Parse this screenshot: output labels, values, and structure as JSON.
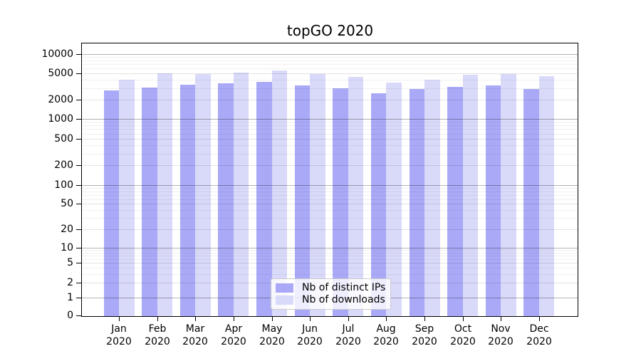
{
  "chart_data": {
    "type": "bar",
    "title": "topGO 2020",
    "yscale": "log-symlog with 1-2-5 tick sequence, 0 baseline",
    "categories": [
      "Jan",
      "Feb",
      "Mar",
      "Apr",
      "May",
      "Jun",
      "Jul",
      "Aug",
      "Sep",
      "Oct",
      "Nov",
      "Dec"
    ],
    "category_year": "2020",
    "series": [
      {
        "name": "Nb of distinct IPs",
        "color": "#a9a9f7",
        "values": [
          2750,
          3050,
          3350,
          3550,
          3700,
          3300,
          2950,
          2500,
          2900,
          3100,
          3300,
          2900
        ]
      },
      {
        "name": "Nb of downloads",
        "color": "#d9d9f9",
        "values": [
          4000,
          5000,
          4950,
          5150,
          5600,
          4900,
          4450,
          3650,
          4000,
          4800,
          4900,
          4600
        ]
      }
    ],
    "yticks": [
      10000,
      5000,
      2000,
      1000,
      500,
      200,
      100,
      50,
      20,
      10,
      5,
      2,
      1,
      0
    ],
    "ylim": [
      0,
      15000
    ],
    "grid": true,
    "legend_position": "lower center"
  },
  "legend": {
    "items": [
      {
        "label": "Nb of distinct IPs"
      },
      {
        "label": "Nb of downloads"
      }
    ]
  }
}
